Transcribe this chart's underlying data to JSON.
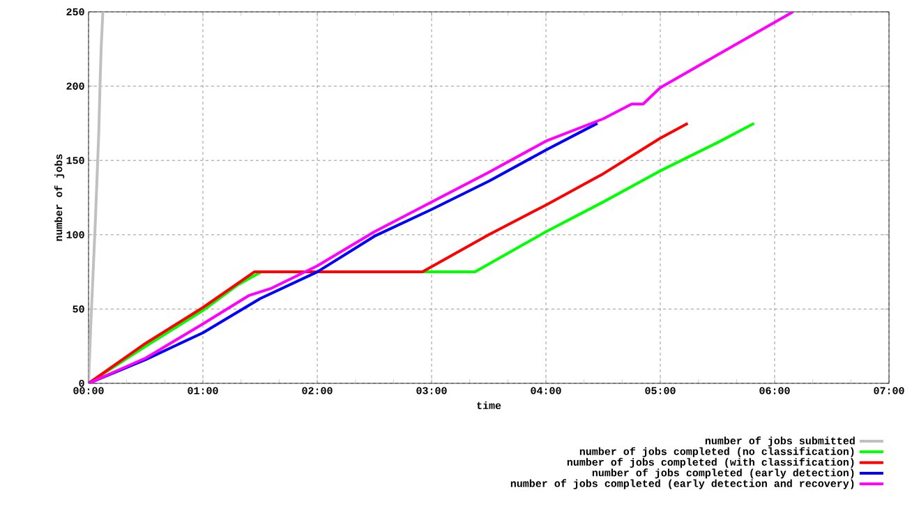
{
  "chart_data": {
    "type": "line",
    "xlabel": "time",
    "ylabel": "number of jobs",
    "xlim": [
      0,
      7
    ],
    "ylim": [
      0,
      250
    ],
    "xticks": [
      {
        "value": 0,
        "label": "00:00"
      },
      {
        "value": 1,
        "label": "01:00"
      },
      {
        "value": 2,
        "label": "02:00"
      },
      {
        "value": 3,
        "label": "03:00"
      },
      {
        "value": 4,
        "label": "04:00"
      },
      {
        "value": 5,
        "label": "05:00"
      },
      {
        "value": 6,
        "label": "06:00"
      },
      {
        "value": 7,
        "label": "07:00"
      }
    ],
    "yticks": [
      0,
      50,
      100,
      150,
      200,
      250
    ],
    "grid": true,
    "legend": "bottom right",
    "marker": "none",
    "line_style": "solid",
    "series": [
      {
        "name": "number of jobs submitted",
        "color": "#c0c0c0",
        "x": [
          0,
          0.01,
          0.02,
          0.04,
          0.06,
          0.075,
          0.09,
          0.1,
          0.11,
          0.125
        ],
        "values": [
          0,
          20,
          40,
          75,
          110,
          140,
          170,
          200,
          225,
          250
        ]
      },
      {
        "name": "number of jobs completed (no classification)",
        "color": "#00ff00",
        "x": [
          0,
          0.5,
          1,
          1.3,
          1.51,
          3.38,
          4,
          4.5,
          5,
          5.5,
          5.82
        ],
        "values": [
          0,
          25,
          49,
          66,
          75,
          75,
          102,
          122,
          143,
          162,
          175
        ]
      },
      {
        "name": "number of jobs completed (with classification)",
        "color": "#ff0000",
        "x": [
          0,
          0.5,
          1,
          1.45,
          2.92,
          3.5,
          4,
          4.5,
          5,
          5.24
        ],
        "values": [
          0,
          27,
          51,
          75,
          75,
          100,
          120,
          141,
          165,
          175
        ]
      },
      {
        "name": "number of jobs completed (early detection)",
        "color": "#0000ff",
        "x": [
          0,
          0.5,
          1,
          1.5,
          2,
          2.5,
          3,
          3.5,
          4,
          4.45
        ],
        "values": [
          0,
          16,
          34,
          57,
          75,
          99,
          117,
          136,
          157,
          175
        ]
      },
      {
        "name": "number of jobs completed (early detection and recovery)",
        "color": "#ff00ff",
        "x": [
          0,
          0.5,
          1,
          1.4,
          1.6,
          2,
          2.5,
          3,
          3.5,
          4,
          4.5,
          4.75,
          4.85,
          5,
          5.5,
          6,
          6.16
        ],
        "values": [
          0,
          17,
          40,
          59,
          64,
          79,
          102,
          122,
          142,
          163,
          178,
          188,
          188,
          199,
          221,
          243,
          250
        ]
      }
    ]
  }
}
